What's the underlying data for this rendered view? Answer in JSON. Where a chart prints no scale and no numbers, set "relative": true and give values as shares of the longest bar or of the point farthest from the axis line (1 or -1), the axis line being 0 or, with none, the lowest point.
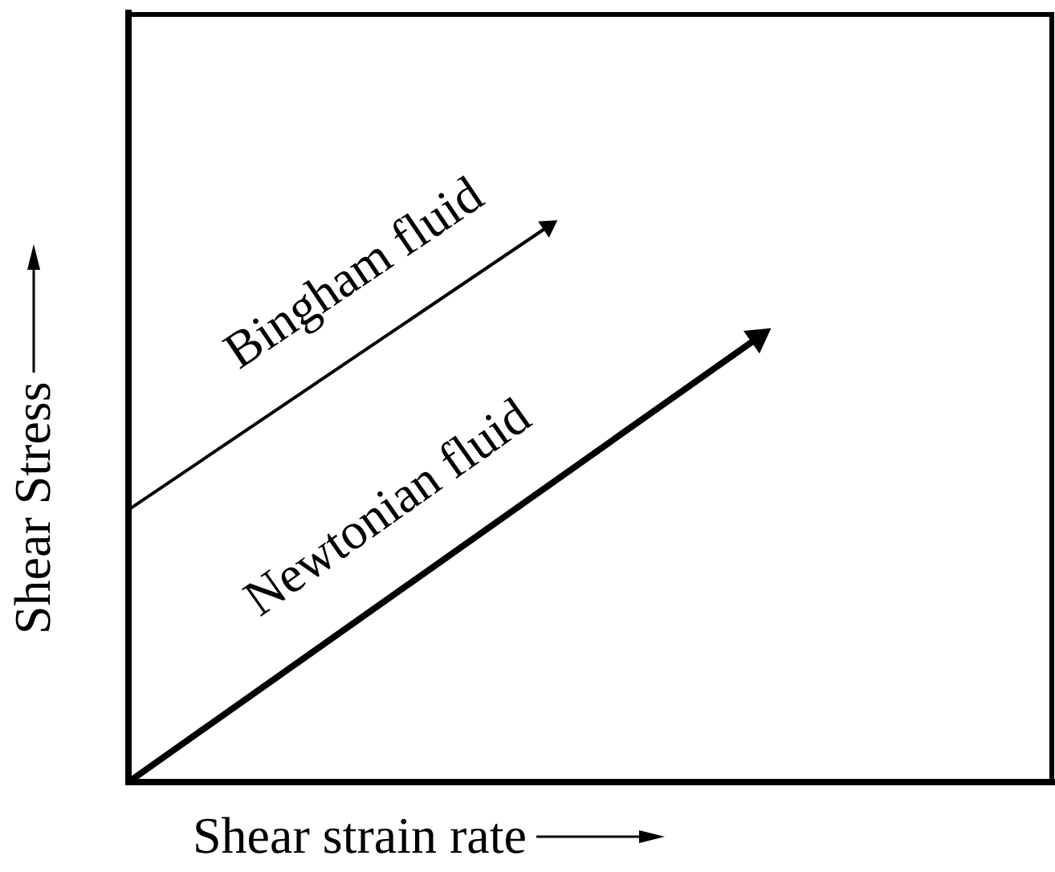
{
  "chart_data": {
    "type": "line",
    "relative": true,
    "xlabel": "Shear strain rate",
    "ylabel": "Shear Stress",
    "legend": false,
    "line_style": "solid",
    "categories": [
      null,
      null,
      null,
      null,
      null,
      null,
      null,
      null,
      null,
      null,
      null,
      null,
      null,
      null,
      null,
      null,
      null,
      null,
      null,
      null,
      null,
      null,
      null
    ],
    "series": [
      {
        "name": "Bingham fluid",
        "color": "#000000",
        "values": [
          0.49,
          null,
          null,
          null,
          null,
          null,
          null,
          null,
          null,
          null,
          1,
          null,
          null,
          null,
          null,
          null,
          null,
          null,
          null,
          null,
          null,
          null,
          null
        ]
      },
      {
        "name": "Newtonian fluid",
        "color": "#000000",
        "values": [
          0,
          null,
          null,
          null,
          null,
          null,
          null,
          null,
          null,
          null,
          null,
          null,
          null,
          null,
          null,
          0.8,
          null,
          null,
          null,
          null,
          null,
          null,
          null
        ]
      }
    ]
  }
}
